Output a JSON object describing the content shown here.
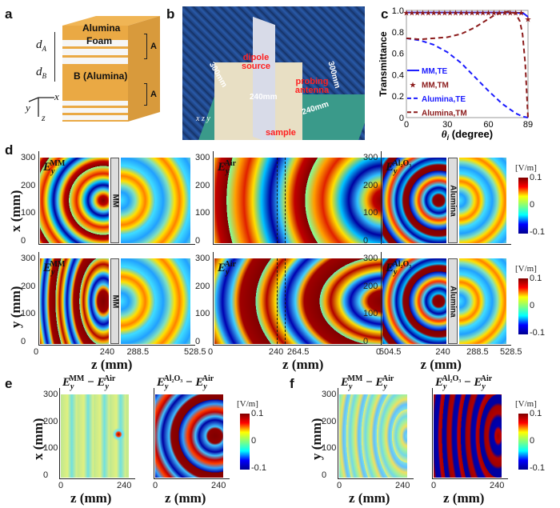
{
  "panel_labels": {
    "a": "a",
    "b": "b",
    "c": "c",
    "d": "d",
    "e": "e",
    "f": "f"
  },
  "panel_a": {
    "top": "Alumina",
    "foam": "Foam",
    "block_b": "B (Alumina)",
    "layer_a_top": "A",
    "layer_a_bottom": "A",
    "d_a": "d",
    "d_a_sub": "A",
    "d_b": "d",
    "d_b_sub": "B",
    "axis_x": "x",
    "axis_y": "y",
    "axis_z": "z",
    "colors": {
      "alumina": "#e8a941",
      "foam": "#f4f4f4"
    }
  },
  "panel_b": {
    "dipole": "dipole source",
    "probe": "probing antenna",
    "sample": "sample",
    "dim_300_left": "300mm",
    "dim_300_right": "300mm",
    "dim_240_left": "240mm",
    "dim_240_right": "240mm",
    "axis_x": "x",
    "axis_z": "z",
    "axis_y": "y",
    "label_color": "#ff2020"
  },
  "chart_data": {
    "type": "line",
    "xlabel": "θ",
    "xlabel_sub": "i",
    "xlabel_unit": " (degree)",
    "ylabel": "Transmittance",
    "xlim": [
      0,
      89
    ],
    "ylim": [
      0,
      1.0
    ],
    "xticks": [
      "0",
      "30",
      "60",
      "89"
    ],
    "yticks": [
      "0",
      "0.2",
      "0.4",
      "0.6",
      "0.8",
      "1.0"
    ],
    "legend_position": "left",
    "series": [
      {
        "name": "MM,TE",
        "style": "solid",
        "color": "#1a1aff",
        "x": [
          0,
          20,
          40,
          60,
          80,
          86,
          89
        ],
        "y": [
          0.98,
          0.98,
          0.98,
          0.98,
          0.98,
          0.97,
          0.94
        ]
      },
      {
        "name": "MM,TM",
        "style": "stars",
        "color": "#8b1a1a",
        "x": [
          0,
          4,
          8,
          12,
          16,
          20,
          24,
          28,
          32,
          36,
          40,
          44,
          48,
          52,
          56,
          60,
          64,
          68,
          72,
          76,
          80,
          84,
          89
        ],
        "y": [
          0.98,
          0.98,
          0.98,
          0.98,
          0.98,
          0.98,
          0.98,
          0.98,
          0.98,
          0.98,
          0.98,
          0.98,
          0.98,
          0.98,
          0.98,
          0.98,
          0.98,
          0.98,
          0.98,
          0.98,
          0.98,
          0.98,
          0.92
        ]
      },
      {
        "name": "Alumina,TE",
        "style": "dashed",
        "color": "#1a1aff",
        "x": [
          0,
          10,
          20,
          30,
          40,
          50,
          60,
          70,
          80,
          85,
          89
        ],
        "y": [
          0.74,
          0.72,
          0.68,
          0.61,
          0.51,
          0.38,
          0.25,
          0.13,
          0.04,
          0.01,
          0.0
        ]
      },
      {
        "name": "Alumina,TM",
        "style": "dashed",
        "color": "#8b1a1a",
        "x": [
          0,
          10,
          20,
          30,
          40,
          50,
          60,
          65,
          70,
          75,
          80,
          83,
          85,
          87,
          88,
          89
        ],
        "y": [
          0.74,
          0.73,
          0.74,
          0.75,
          0.78,
          0.84,
          0.92,
          0.96,
          0.98,
          0.99,
          0.97,
          0.9,
          0.78,
          0.5,
          0.25,
          0.0
        ]
      }
    ]
  },
  "panel_d": {
    "row1_ylabel": "x (mm)",
    "row2_ylabel": "y (mm)",
    "yticks": [
      "300",
      "200",
      "100",
      "0"
    ],
    "titles": [
      {
        "base": "E",
        "sub": "y",
        "sup": "MM"
      },
      {
        "base": "E",
        "sub": "y",
        "sup": "Air"
      },
      {
        "base": "E",
        "sub": "y",
        "sup": "Al₂O₃"
      }
    ],
    "slab_mm": "MM",
    "slab_alumina": "Alumina",
    "xticks_mm": [
      "0",
      "240",
      "288.5",
      "528.5"
    ],
    "xticks_air": [
      "0",
      "240",
      "264.5",
      "504.5"
    ],
    "xticks_alumina": [
      "0",
      "240",
      "288.5",
      "528.5"
    ],
    "xlabel": "z (mm)"
  },
  "colorbar": {
    "unit": "[V/m]",
    "max": "0.1",
    "mid": "0",
    "min": "-0.1"
  },
  "panel_e": {
    "ylabel": "x (mm)",
    "titles": [
      {
        "a": "E",
        "a_sub": "y",
        "a_sup": "MM",
        "b": "E",
        "b_sub": "y",
        "b_sup": "Air"
      },
      {
        "a": "E",
        "a_sub": "y",
        "a_sup": "Al₂O₃",
        "b": "E",
        "b_sub": "y",
        "b_sup": "Air"
      }
    ],
    "yticks": [
      "300",
      "200",
      "100",
      "0"
    ],
    "xticks": [
      "0",
      "240"
    ],
    "xlabel": "z (mm)"
  },
  "panel_f": {
    "ylabel": "y (mm)",
    "titles": [
      {
        "a": "E",
        "a_sub": "y",
        "a_sup": "MM",
        "b": "E",
        "b_sub": "y",
        "b_sup": "Air"
      },
      {
        "a": "E",
        "a_sub": "y",
        "a_sup": "Al₂O₃",
        "b": "E",
        "b_sub": "y",
        "b_sup": "Air"
      }
    ],
    "yticks": [
      "300",
      "200",
      "100",
      "0"
    ],
    "xticks": [
      "0",
      "240"
    ],
    "xlabel": "z (mm)"
  },
  "minus": " − "
}
